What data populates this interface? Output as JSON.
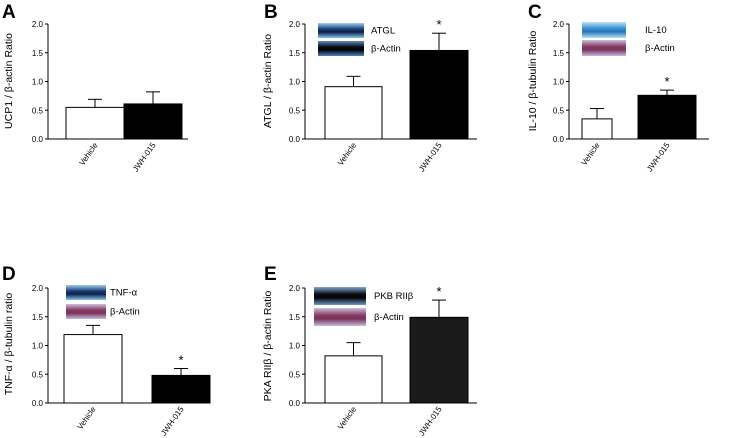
{
  "chart_data": [
    {
      "panel": "A",
      "type": "bar",
      "ylabel": "UCP1 / β-actin Ratio",
      "categories": [
        "Vehicle",
        "JWH-015"
      ],
      "values": [
        0.55,
        0.61
      ],
      "errors": [
        0.14,
        0.21
      ],
      "fills": [
        "#ffffff",
        "#000000"
      ],
      "ylim": [
        0,
        2.0
      ],
      "yticks": [
        "0.0",
        "0.5",
        "1.0",
        "1.5",
        "2.0"
      ],
      "significance": [
        "",
        ""
      ],
      "blots": []
    },
    {
      "panel": "B",
      "type": "bar",
      "ylabel": "ATGL / β-actin Ratio",
      "categories": [
        "Vehicle",
        "JWH-015"
      ],
      "values": [
        0.91,
        1.54
      ],
      "errors": [
        0.18,
        0.3
      ],
      "fills": [
        "#ffffff",
        "#000000"
      ],
      "ylim": [
        0,
        2.0
      ],
      "yticks": [
        "0.0",
        "0.5",
        "1.0",
        "1.5",
        "2.0"
      ],
      "significance": [
        "",
        "*"
      ],
      "blots": [
        {
          "label": "ATGL",
          "style": "dark-blue"
        },
        {
          "label": "β-Actin",
          "style": "black"
        }
      ]
    },
    {
      "panel": "C",
      "type": "bar",
      "ylabel": "IL-10 / β-tubulin Ratio",
      "categories": [
        "Vehicle",
        "JWH-015"
      ],
      "values": [
        0.35,
        0.76
      ],
      "errors": [
        0.18,
        0.09
      ],
      "fills": [
        "#ffffff",
        "#000000"
      ],
      "ylim": [
        0,
        2.0
      ],
      "yticks": [
        "0.0",
        "0.5",
        "1.0",
        "1.5",
        "2.0"
      ],
      "significance": [
        "",
        "*"
      ],
      "blots": [
        {
          "label": "IL-10",
          "style": "light-blue"
        },
        {
          "label": "β-Actin",
          "style": "mauve"
        }
      ]
    },
    {
      "panel": "D",
      "type": "bar",
      "ylabel": "TNF-α / β-tubulin ratio",
      "categories": [
        "Vehicle",
        "JWH-015"
      ],
      "values": [
        1.19,
        0.48
      ],
      "errors": [
        0.16,
        0.12
      ],
      "fills": [
        "#ffffff",
        "#000000"
      ],
      "ylim": [
        0,
        2.0
      ],
      "yticks": [
        "0.0",
        "0.5",
        "1.0",
        "1.5",
        "2.0"
      ],
      "significance": [
        "",
        "*"
      ],
      "blots": [
        {
          "label": "TNF-α",
          "style": "dark-blue"
        },
        {
          "label": "β-Actin",
          "style": "mauve"
        }
      ]
    },
    {
      "panel": "E",
      "type": "bar",
      "ylabel": "PKA RIIβ / β-actin Ratio",
      "categories": [
        "Vehicle",
        "JWH-015"
      ],
      "values": [
        0.82,
        1.49
      ],
      "errors": [
        0.23,
        0.3
      ],
      "fills": [
        "#ffffff",
        "#1a1a1a"
      ],
      "ylim": [
        0,
        2.0
      ],
      "yticks": [
        "0.0",
        "0.5",
        "1.0",
        "1.5",
        "2.0"
      ],
      "significance": [
        "",
        "*"
      ],
      "blots": [
        {
          "label": "PKB RIIβ",
          "style": "black-large"
        },
        {
          "label": "β-Actin",
          "style": "mauve"
        }
      ]
    }
  ]
}
